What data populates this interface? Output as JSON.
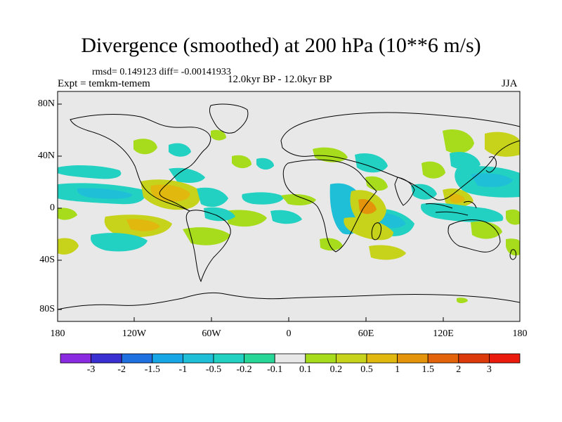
{
  "title": "Divergence (smoothed) at 200 hPa (10**6 m/s)",
  "stats": "rmsd= 0.149123 diff= -0.00141933",
  "experiment": "Expt = temkm-temem",
  "period": "12.0kyr BP - 12.0kyr BP",
  "season": "JJA",
  "lat_labels": [
    "80N",
    "40N",
    "0",
    "40S",
    "80S"
  ],
  "lon_labels": [
    "180",
    "120W",
    "60W",
    "0",
    "60E",
    "120E",
    "180"
  ],
  "colorbar": {
    "labels": [
      "-3",
      "-2",
      "-1.5",
      "-1",
      "-0.5",
      "-0.2",
      "-0.1",
      "0.1",
      "0.2",
      "0.5",
      "1",
      "1.5",
      "2",
      "3"
    ],
    "colors": [
      "#8a2be2",
      "#3a2fd0",
      "#1e6fe0",
      "#17a7e6",
      "#1fbfd8",
      "#22d1c1",
      "#28d797",
      "#e8e8e8",
      "#a6dc1b",
      "#c6d31a",
      "#e0b80e",
      "#e3940a",
      "#e2630a",
      "#dc3a0a",
      "#ea1a0c"
    ]
  },
  "map_colors": {
    "background": "#e8e8e8",
    "neg_light": "#28d797",
    "neg_mid": "#22d1c1",
    "neg_strong": "#1fbfd8",
    "pos_light": "#a6dc1b",
    "pos_mid": "#c6d31a",
    "pos_strong": "#e0b80e",
    "pos_stronger": "#e3940a"
  }
}
